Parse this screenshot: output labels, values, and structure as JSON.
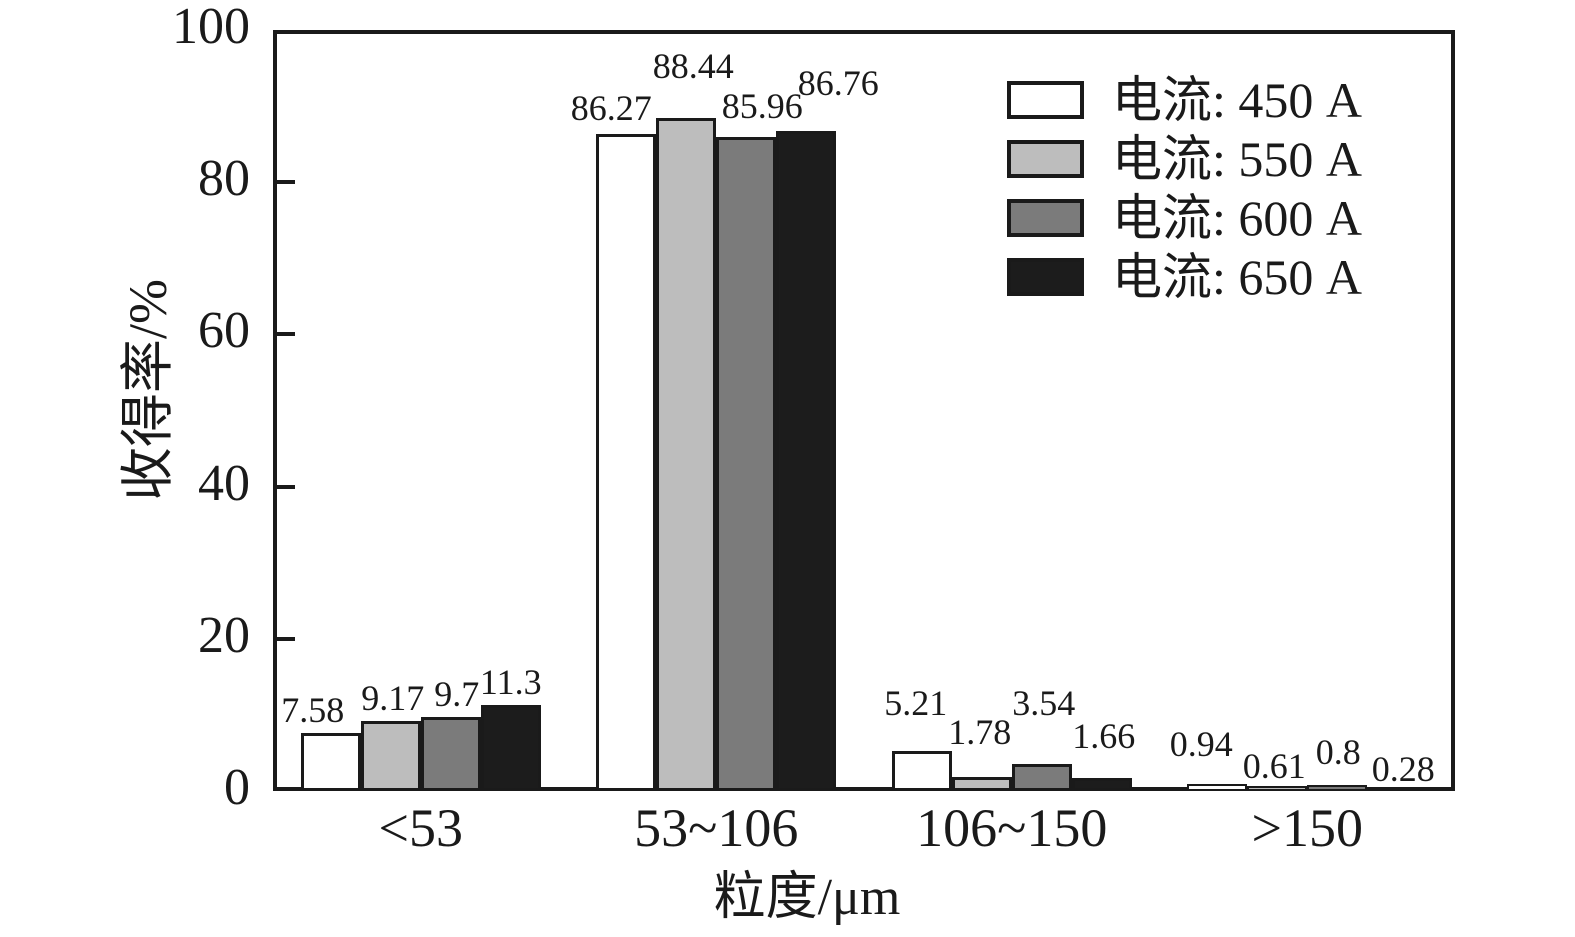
{
  "chart_data": {
    "type": "bar",
    "title": "",
    "xlabel": "粒度/μm",
    "ylabel": "收得率/%",
    "categories": [
      "<53",
      "53~106",
      "106~150",
      ">150"
    ],
    "series": [
      {
        "name": "电流: 450 A",
        "color": "#ffffff",
        "values": [
          7.58,
          86.27,
          5.21,
          0.94
        ]
      },
      {
        "name": "电流: 550 A",
        "color": "#bdbdbd",
        "values": [
          9.17,
          88.44,
          1.78,
          0.61
        ]
      },
      {
        "name": "电流: 600 A",
        "color": "#7b7b7b",
        "values": [
          9.7,
          85.96,
          3.54,
          0.8
        ]
      },
      {
        "name": "电流: 650 A",
        "color": "#1c1c1c",
        "values": [
          11.3,
          86.76,
          1.66,
          0.28
        ]
      }
    ],
    "value_labels": [
      [
        "7.58",
        "9.17",
        "9.7",
        "11.3"
      ],
      [
        "86.27",
        "88.44",
        "85.96",
        "86.76"
      ],
      [
        "5.21",
        "1.78",
        "3.54",
        "1.66"
      ],
      [
        "0.94",
        "0.61",
        "0.8",
        "0.28"
      ]
    ],
    "ylim": [
      0,
      100
    ],
    "yticks": [
      0,
      20,
      40,
      60,
      80,
      100
    ],
    "grid": false,
    "legend_position": "upper-right",
    "bar_edge_color": "#1a1a1a",
    "axis_color": "#1a1a1a",
    "background": "#ffffff",
    "value_label_offsets": {
      "dx": [
        [
          -18,
          2,
          6,
          0
        ],
        [
          -15,
          7,
          16,
          32
        ],
        [
          -6,
          -2,
          2,
          2
        ],
        [
          -16,
          -3,
          1,
          6
        ]
      ],
      "dy": [
        [
          3,
          3,
          3,
          3
        ],
        [
          0,
          -26,
          -5,
          -22
        ],
        [
          -22,
          -19,
          -35,
          -16
        ],
        [
          -14,
          6,
          -7,
          6
        ]
      ]
    }
  }
}
